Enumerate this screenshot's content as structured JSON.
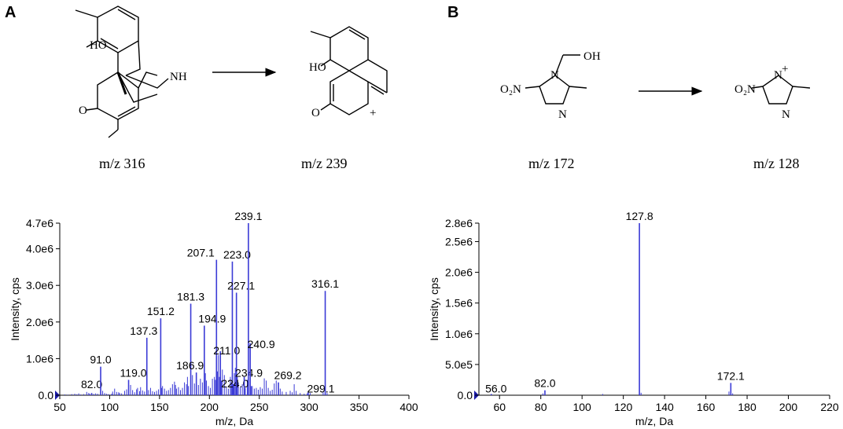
{
  "panels": {
    "A": {
      "label": "A",
      "reactant_mz": "m/z  316",
      "product_mz": "m/z  239",
      "chem_labels": [
        "HO",
        "NH",
        "O",
        "HO",
        "O",
        "+"
      ]
    },
    "B": {
      "label": "B",
      "reactant_mz": "m/z  172",
      "product_mz": "m/z  128",
      "chem_labels": [
        "OH",
        "O₂N",
        "N",
        "N",
        "O₂N",
        "N",
        "+",
        "N"
      ]
    }
  },
  "chart_data": [
    {
      "type": "bar",
      "xlabel": "m/z, Da",
      "ylabel": "Intensity, cps",
      "xlim": [
        50,
        400
      ],
      "ylim": [
        0,
        4700000
      ],
      "xticks": [
        50,
        100,
        150,
        200,
        250,
        300,
        350,
        400
      ],
      "xtick_labels": [
        "50",
        "100",
        "150",
        "200",
        "250",
        "300",
        "350",
        "400"
      ],
      "yticks": [
        0,
        1000000,
        2000000,
        3000000,
        4000000,
        4700000
      ],
      "ytick_labels": [
        "0.0",
        "1.0e6",
        "2.0e6",
        "3.0e6",
        "4.0e6",
        "4.7e6"
      ],
      "color": "#3b3bd6",
      "peaks": [
        {
          "x": 82.0,
          "y": 60000,
          "label": "82.0"
        },
        {
          "x": 91.0,
          "y": 780000,
          "label": "91.0"
        },
        {
          "x": 119.0,
          "y": 420000,
          "label": "119.0"
        },
        {
          "x": 137.3,
          "y": 1570000,
          "label": "137.3"
        },
        {
          "x": 151.2,
          "y": 2100000,
          "label": "151.2"
        },
        {
          "x": 181.3,
          "y": 2500000,
          "label": "181.3"
        },
        {
          "x": 186.9,
          "y": 620000,
          "label": "186.9"
        },
        {
          "x": 194.9,
          "y": 1900000,
          "label": "194.9"
        },
        {
          "x": 207.1,
          "y": 3700000,
          "label": "207.1"
        },
        {
          "x": 211.0,
          "y": 1200000,
          "label": "211.0"
        },
        {
          "x": 223.0,
          "y": 3650000,
          "label": "223.0"
        },
        {
          "x": 224.0,
          "y": 300000,
          "label": "224.0"
        },
        {
          "x": 227.1,
          "y": 2800000,
          "label": "227.1"
        },
        {
          "x": 234.9,
          "y": 500000,
          "label": "234.9"
        },
        {
          "x": 239.1,
          "y": 4700000,
          "label": "239.1"
        },
        {
          "x": 240.9,
          "y": 1420000,
          "label": "240.9"
        },
        {
          "x": 269.2,
          "y": 350000,
          "label": "269.2"
        },
        {
          "x": 299.1,
          "y": 80000,
          "label": "299.1"
        },
        {
          "x": 316.1,
          "y": 2850000,
          "label": "316.1"
        }
      ],
      "minor_peaks": [
        [
          55,
          20000
        ],
        [
          58,
          15000
        ],
        [
          62,
          30000
        ],
        [
          65,
          40000
        ],
        [
          67,
          25000
        ],
        [
          69,
          50000
        ],
        [
          71,
          20000
        ],
        [
          74,
          30000
        ],
        [
          77,
          90000
        ],
        [
          79,
          60000
        ],
        [
          80,
          40000
        ],
        [
          84,
          35000
        ],
        [
          86,
          50000
        ],
        [
          88,
          40000
        ],
        [
          93,
          120000
        ],
        [
          95,
          60000
        ],
        [
          97,
          40000
        ],
        [
          99,
          30000
        ],
        [
          102,
          40000
        ],
        [
          103,
          100000
        ],
        [
          105,
          180000
        ],
        [
          107,
          90000
        ],
        [
          109,
          80000
        ],
        [
          110,
          60000
        ],
        [
          112,
          50000
        ],
        [
          115,
          120000
        ],
        [
          117,
          160000
        ],
        [
          121,
          280000
        ],
        [
          123,
          140000
        ],
        [
          125,
          80000
        ],
        [
          127,
          160000
        ],
        [
          128,
          200000
        ],
        [
          130,
          110000
        ],
        [
          131,
          220000
        ],
        [
          133,
          130000
        ],
        [
          135,
          100000
        ],
        [
          139,
          140000
        ],
        [
          141,
          200000
        ],
        [
          143,
          110000
        ],
        [
          145,
          90000
        ],
        [
          147,
          120000
        ],
        [
          149,
          160000
        ],
        [
          152,
          200000
        ],
        [
          153,
          250000
        ],
        [
          155,
          180000
        ],
        [
          157,
          120000
        ],
        [
          159,
          140000
        ],
        [
          161,
          200000
        ],
        [
          163,
          300000
        ],
        [
          165,
          370000
        ],
        [
          166,
          280000
        ],
        [
          167,
          180000
        ],
        [
          169,
          220000
        ],
        [
          171,
          140000
        ],
        [
          173,
          200000
        ],
        [
          175,
          350000
        ],
        [
          177,
          300000
        ],
        [
          178,
          500000
        ],
        [
          179,
          250000
        ],
        [
          183,
          550000
        ],
        [
          185,
          320000
        ],
        [
          189,
          280000
        ],
        [
          191,
          450000
        ],
        [
          193,
          350000
        ],
        [
          196,
          600000
        ],
        [
          197,
          400000
        ],
        [
          199,
          250000
        ],
        [
          201,
          200000
        ],
        [
          203,
          450000
        ],
        [
          205,
          500000
        ],
        [
          206,
          420000
        ],
        [
          208,
          650000
        ],
        [
          209,
          1100000
        ],
        [
          210,
          500000
        ],
        [
          212,
          400000
        ],
        [
          213,
          700000
        ],
        [
          215,
          550000
        ],
        [
          217,
          220000
        ],
        [
          219,
          180000
        ],
        [
          221,
          500000
        ],
        [
          222,
          350000
        ],
        [
          225,
          600000
        ],
        [
          226,
          750000
        ],
        [
          228,
          500000
        ],
        [
          229,
          350000
        ],
        [
          231,
          220000
        ],
        [
          233,
          300000
        ],
        [
          236,
          200000
        ],
        [
          238,
          420000
        ],
        [
          242,
          250000
        ],
        [
          243,
          250000
        ],
        [
          245,
          180000
        ],
        [
          247,
          200000
        ],
        [
          249,
          150000
        ],
        [
          251,
          220000
        ],
        [
          253,
          180000
        ],
        [
          255,
          460000
        ],
        [
          257,
          400000
        ],
        [
          259,
          200000
        ],
        [
          261,
          120000
        ],
        [
          263,
          150000
        ],
        [
          265,
          320000
        ],
        [
          267,
          400000
        ],
        [
          271,
          180000
        ],
        [
          273,
          100000
        ],
        [
          277,
          90000
        ],
        [
          281,
          120000
        ],
        [
          283,
          80000
        ],
        [
          285,
          300000
        ],
        [
          287,
          120000
        ],
        [
          291,
          60000
        ],
        [
          295,
          40000
        ],
        [
          298,
          50000
        ],
        [
          301,
          60000
        ],
        [
          314,
          80000
        ],
        [
          318,
          60000
        ]
      ]
    },
    {
      "type": "bar",
      "xlabel": "m/z, Da",
      "ylabel": "Intensity, cps",
      "xlim": [
        50,
        220
      ],
      "ylim": [
        0,
        2800000
      ],
      "xticks": [
        60,
        80,
        100,
        120,
        140,
        160,
        180,
        200,
        220
      ],
      "xtick_labels": [
        "60",
        "80",
        "100",
        "120",
        "140",
        "160",
        "180",
        "200",
        "220"
      ],
      "yticks": [
        0,
        500000,
        1000000,
        1500000,
        2000000,
        2500000,
        2800000
      ],
      "ytick_labels": [
        "0.0",
        "5.0e5",
        "1.0e6",
        "1.5e6",
        "2.0e6",
        "2.5e6",
        "2.8e6"
      ],
      "color": "#3b3bd6",
      "peaks": [
        {
          "x": 56.0,
          "y": 20000,
          "label": "56.0"
        },
        {
          "x": 82.0,
          "y": 80000,
          "label": "82.0"
        },
        {
          "x": 127.8,
          "y": 2800000,
          "label": "127.8"
        },
        {
          "x": 172.1,
          "y": 200000,
          "label": "172.1"
        }
      ],
      "minor_peaks": [
        [
          81,
          30000
        ],
        [
          110,
          20000
        ],
        [
          128.6,
          40000
        ],
        [
          171.2,
          60000
        ],
        [
          173,
          30000
        ]
      ]
    }
  ]
}
